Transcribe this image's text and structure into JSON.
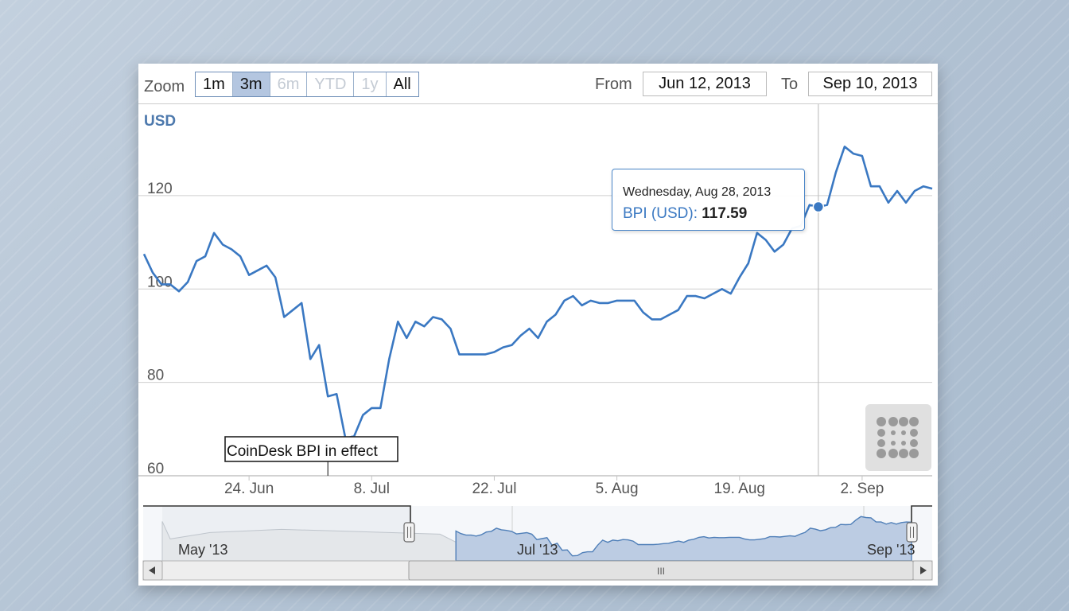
{
  "toolbar": {
    "zoom_label": "Zoom",
    "zoom_buttons": [
      {
        "label": "1m",
        "state": "normal"
      },
      {
        "label": "3m",
        "state": "active"
      },
      {
        "label": "6m",
        "state": "disabled"
      },
      {
        "label": "YTD",
        "state": "disabled"
      },
      {
        "label": "1y",
        "state": "disabled"
      },
      {
        "label": "All",
        "state": "normal"
      }
    ],
    "from_label": "From",
    "from_value": "Jun 12, 2013",
    "to_label": "To",
    "to_value": "Sep 10, 2013"
  },
  "tooltip": {
    "date": "Wednesday, Aug 28, 2013",
    "series_label": "BPI (USD)",
    "separator": ":",
    "value": "117.59"
  },
  "flag": {
    "text": "CoinDesk BPI in effect"
  },
  "navigator": {
    "labels": [
      "May '13",
      "Jul '13",
      "Sep '13"
    ],
    "scrollbar_grip": "III"
  },
  "colors": {
    "series": "#3a78c2",
    "navigator_fill": "#bccce3",
    "tooltip_border": "#4a86c8"
  },
  "icons": [
    "export-menu-icon",
    "scroll-left-arrow-icon",
    "scroll-right-arrow-icon",
    "scrollbar-grip-icon"
  ],
  "chart_data": {
    "type": "line",
    "ylabel": "USD",
    "ylim": [
      60,
      136
    ],
    "yticks": [
      60,
      80,
      100,
      120
    ],
    "xlim": [
      "2013-06-12",
      "2013-09-10"
    ],
    "xticks": [
      {
        "date": "2013-06-24",
        "label": "24. Jun"
      },
      {
        "date": "2013-07-08",
        "label": "8. Jul"
      },
      {
        "date": "2013-07-22",
        "label": "22. Jul"
      },
      {
        "date": "2013-08-05",
        "label": "5. Aug"
      },
      {
        "date": "2013-08-19",
        "label": "19. Aug"
      },
      {
        "date": "2013-09-02",
        "label": "2. Sep"
      }
    ],
    "crosshair_date": "2013-08-28",
    "flag_date": "2013-07-03",
    "series": [
      {
        "name": "BPI (USD)",
        "x": [
          "2013-06-12",
          "2013-06-13",
          "2013-06-14",
          "2013-06-15",
          "2013-06-16",
          "2013-06-17",
          "2013-06-18",
          "2013-06-19",
          "2013-06-20",
          "2013-06-21",
          "2013-06-22",
          "2013-06-23",
          "2013-06-24",
          "2013-06-25",
          "2013-06-26",
          "2013-06-27",
          "2013-06-28",
          "2013-06-29",
          "2013-06-30",
          "2013-07-01",
          "2013-07-02",
          "2013-07-03",
          "2013-07-04",
          "2013-07-05",
          "2013-07-06",
          "2013-07-07",
          "2013-07-08",
          "2013-07-09",
          "2013-07-10",
          "2013-07-11",
          "2013-07-12",
          "2013-07-13",
          "2013-07-14",
          "2013-07-15",
          "2013-07-16",
          "2013-07-17",
          "2013-07-18",
          "2013-07-19",
          "2013-07-20",
          "2013-07-21",
          "2013-07-22",
          "2013-07-23",
          "2013-07-24",
          "2013-07-25",
          "2013-07-26",
          "2013-07-27",
          "2013-07-28",
          "2013-07-29",
          "2013-07-30",
          "2013-07-31",
          "2013-08-01",
          "2013-08-02",
          "2013-08-03",
          "2013-08-04",
          "2013-08-05",
          "2013-08-06",
          "2013-08-07",
          "2013-08-08",
          "2013-08-09",
          "2013-08-10",
          "2013-08-11",
          "2013-08-12",
          "2013-08-13",
          "2013-08-14",
          "2013-08-15",
          "2013-08-16",
          "2013-08-17",
          "2013-08-18",
          "2013-08-19",
          "2013-08-20",
          "2013-08-21",
          "2013-08-22",
          "2013-08-23",
          "2013-08-24",
          "2013-08-25",
          "2013-08-26",
          "2013-08-27",
          "2013-08-28",
          "2013-08-29",
          "2013-08-30",
          "2013-08-31",
          "2013-09-01",
          "2013-09-02",
          "2013-09-03",
          "2013-09-04",
          "2013-09-05",
          "2013-09-06",
          "2013-09-07",
          "2013-09-08",
          "2013-09-09",
          "2013-09-10"
        ],
        "values": [
          107.5,
          103.5,
          101.0,
          101.0,
          99.5,
          101.5,
          106.0,
          107.0,
          112.0,
          109.5,
          108.5,
          107.0,
          103.0,
          104.0,
          105.0,
          102.5,
          94.0,
          95.5,
          97.0,
          85.0,
          88.0,
          77.0,
          77.5,
          68.0,
          68.5,
          73.0,
          74.5,
          74.5,
          85.0,
          93.0,
          89.5,
          93.0,
          92.0,
          94.0,
          93.5,
          91.5,
          86.0,
          86.0,
          86.0,
          86.0,
          86.5,
          87.5,
          88.0,
          90.0,
          91.5,
          89.5,
          93.0,
          94.5,
          97.5,
          98.5,
          96.5,
          97.5,
          97.0,
          97.0,
          97.5,
          97.5,
          97.5,
          95.0,
          93.5,
          93.5,
          94.5,
          95.5,
          98.5,
          98.5,
          98.0,
          99.0,
          100.0,
          99.0,
          102.5,
          105.5,
          112.0,
          110.5,
          108.0,
          109.5,
          113.0,
          113.5,
          118.0,
          117.59,
          118.0,
          125.0,
          130.5,
          129.0,
          128.5,
          122.0,
          122.0,
          118.5,
          121.0,
          118.5,
          121.0,
          122.0,
          121.5
        ]
      }
    ],
    "navigator": {
      "type": "area",
      "range": [
        "2013-04-15",
        "2013-09-10"
      ],
      "selected": [
        "2013-06-12",
        "2013-09-10"
      ]
    }
  }
}
